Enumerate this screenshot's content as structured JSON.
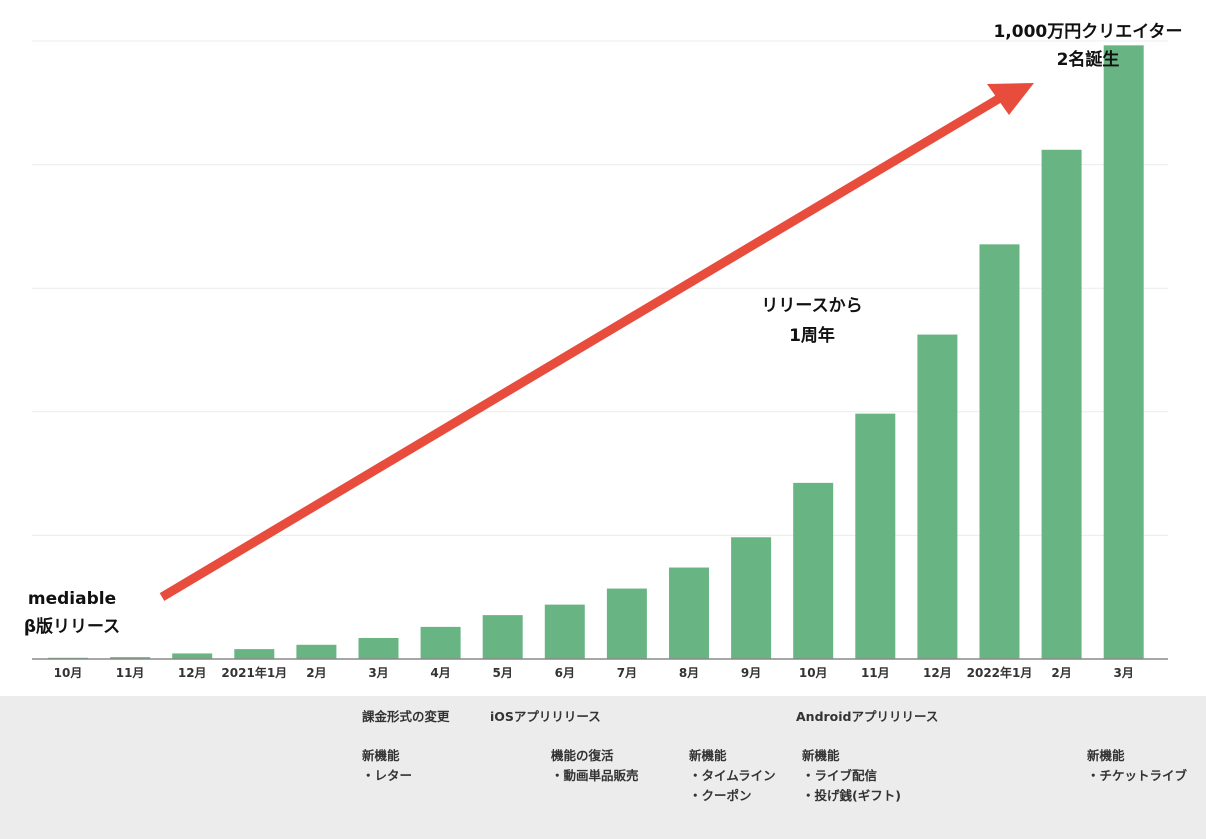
{
  "chart_data": {
    "type": "bar",
    "categories": [
      "10月",
      "11月",
      "12月",
      "2021年1月",
      "2月",
      "3月",
      "4月",
      "5月",
      "6月",
      "7月",
      "8月",
      "9月",
      "10月",
      "11月",
      "12月",
      "2022年1月",
      "2月",
      "3月"
    ],
    "values": [
      0.2,
      0.3,
      0.9,
      1.6,
      2.3,
      3.4,
      5.2,
      7.1,
      8.8,
      11.4,
      14.8,
      19.7,
      28.5,
      39.7,
      52.5,
      67.1,
      82.4,
      99.3
    ],
    "ylim": [
      0,
      100
    ],
    "grid": true,
    "color": "#68b583",
    "arrow_color": "#e84c3d",
    "annotations": {
      "start": [
        "mediable",
        "β版リリース"
      ],
      "anniversary": [
        "リリースから",
        "1周年"
      ],
      "goal": [
        "1,000万円クリエイター",
        "2名誕生"
      ]
    }
  },
  "timeline": [
    {
      "text": "課金形式の変更"
    },
    {
      "text": "新機能\n・レター"
    },
    {
      "text": "iOSアプリリリース"
    },
    {
      "text": "機能の復活\n・動画単品販売"
    },
    {
      "text": "新機能\n・タイムライン\n・クーポン"
    },
    {
      "text": "Androidアプリリリース"
    },
    {
      "text": "新機能\n・ライブ配信\n・投げ銭(ギフト)"
    },
    {
      "text": "新機能\n・チケットライブ"
    }
  ]
}
